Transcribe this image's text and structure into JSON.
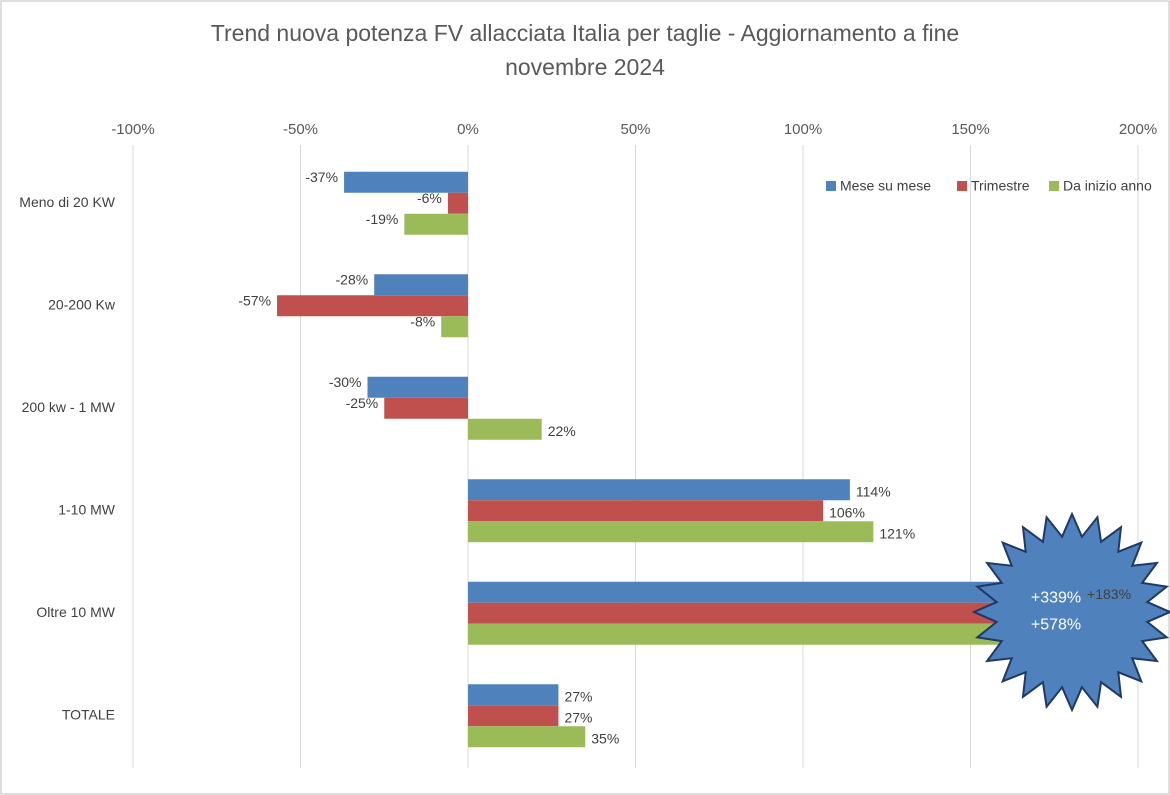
{
  "chart_data": {
    "type": "barh",
    "title": "Trend nuova potenza FV allacciata Italia per taglie - Aggiornamento a fine novembre 2024",
    "categories": [
      "Meno di 20 KW",
      "20-200 Kw",
      "200 kw - 1 MW",
      "1-10 MW",
      "Oltre 10 MW",
      "TOTALE"
    ],
    "series": [
      {
        "name": "Mese su mese",
        "color": "#4f81bd",
        "values": [
          -37,
          -28,
          -30,
          114,
          183,
          27
        ],
        "value_labels": [
          "-37%",
          "-28%",
          "-30%",
          "114%",
          "+183%",
          "27%"
        ]
      },
      {
        "name": "Trimestre",
        "color": "#c0504d",
        "values": [
          -6,
          -57,
          -25,
          106,
          339,
          27
        ],
        "value_labels": [
          "-6%",
          "-57%",
          "-25%",
          "106%",
          "+339%",
          "27%"
        ]
      },
      {
        "name": "Da inizio anno",
        "color": "#9bbb59",
        "values": [
          -19,
          -8,
          22,
          121,
          578,
          35
        ],
        "value_labels": [
          "-19%",
          "-8%",
          "22%",
          "121%",
          "+578%",
          "35%"
        ]
      }
    ],
    "xlim": [
      -100,
      200
    ],
    "xticks": [
      {
        "value": -100,
        "label": "-100%"
      },
      {
        "value": -50,
        "label": "-50%"
      },
      {
        "value": 0,
        "label": "0%"
      },
      {
        "value": 50,
        "label": "50%"
      },
      {
        "value": 100,
        "label": "100%"
      },
      {
        "value": 150,
        "label": "150%"
      },
      {
        "value": 200,
        "label": "200%"
      }
    ],
    "grid": true,
    "legend": "top-right"
  }
}
